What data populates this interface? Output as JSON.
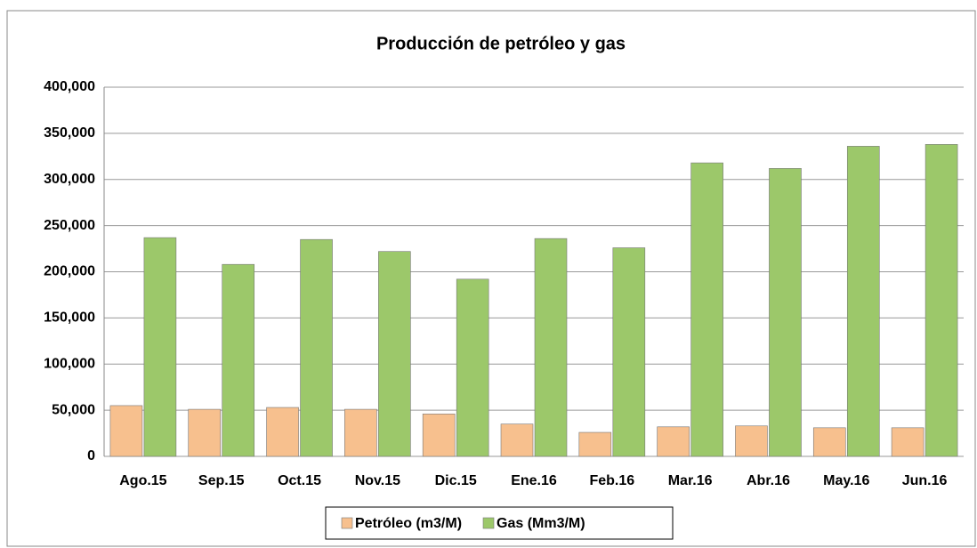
{
  "chart_data": {
    "type": "bar",
    "title": "Producción de petróleo y gas",
    "categories": [
      "Ago.15",
      "Sep.15",
      "Oct.15",
      "Nov.15",
      "Dic.15",
      "Ene.16",
      "Feb.16",
      "Mar.16",
      "Abr.16",
      "May.16",
      "Jun.16"
    ],
    "series": [
      {
        "name": "Petróleo (m3/M)",
        "color": "#f7c08e",
        "values": [
          55000,
          51000,
          53000,
          51000,
          46000,
          35000,
          26000,
          32000,
          33000,
          31000,
          31000
        ]
      },
      {
        "name": "Gas (Mm3/M)",
        "color": "#9cc86a",
        "values": [
          237000,
          208000,
          235000,
          222000,
          192000,
          236000,
          226000,
          318000,
          312000,
          336000,
          338000
        ]
      }
    ],
    "ylim": [
      0,
      400000
    ],
    "yticks": [
      0,
      {
        "value": 50000,
        "label": "50,000"
      },
      {
        "value": 100000,
        "label": "100,000"
      },
      {
        "value": 150000,
        "label": "150,000"
      },
      {
        "value": 200000,
        "label": "200,000"
      },
      {
        "value": 250000,
        "label": "250,000"
      },
      {
        "value": 300000,
        "label": "300,000"
      },
      {
        "value": 350000,
        "label": "350,000"
      },
      {
        "value": 400000,
        "label": "400,000"
      }
    ],
    "grid": true,
    "legend": "bottom"
  }
}
